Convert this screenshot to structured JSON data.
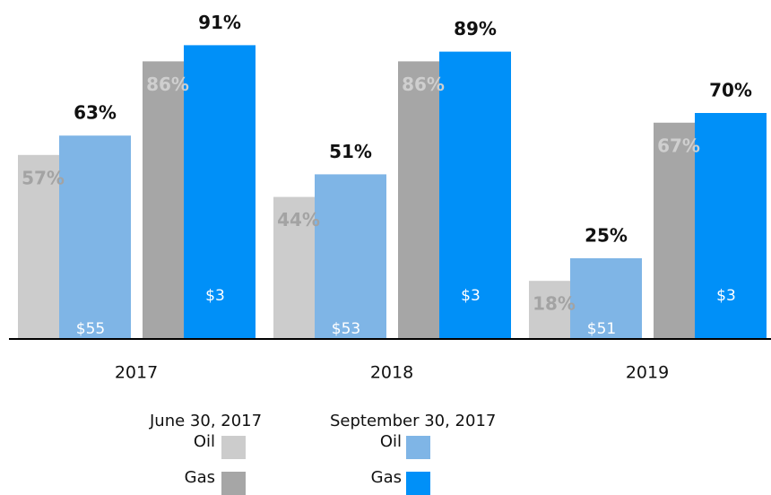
{
  "chart_data": {
    "type": "bar",
    "categories": [
      "2017",
      "2018",
      "2019"
    ],
    "groups": [
      "June 30, 2017",
      "September 30, 2017"
    ],
    "ylim": [
      0,
      100
    ],
    "series": [
      {
        "name": "Oil",
        "group": 0,
        "color": "#cccccc",
        "values": [
          57,
          44,
          18
        ],
        "value_labels": [
          "57%",
          "44%",
          "18%"
        ]
      },
      {
        "name": "Oil",
        "group": 1,
        "color": "#7fb5e6",
        "values": [
          63,
          51,
          25
        ],
        "value_labels": [
          "63%",
          "51%",
          "25%"
        ],
        "price_labels": [
          "$55",
          "$53",
          "$51"
        ]
      },
      {
        "name": "Gas",
        "group": 0,
        "color": "#a6a6a6",
        "values": [
          86,
          86,
          67
        ],
        "value_labels": [
          "86%",
          "86%",
          "67%"
        ]
      },
      {
        "name": "Gas",
        "group": 1,
        "color": "#0090f8",
        "values": [
          91,
          89,
          70
        ],
        "value_labels": [
          "91%",
          "89%",
          "70%"
        ],
        "price_labels": [
          "$3",
          "$3",
          "$3"
        ]
      }
    ]
  }
}
